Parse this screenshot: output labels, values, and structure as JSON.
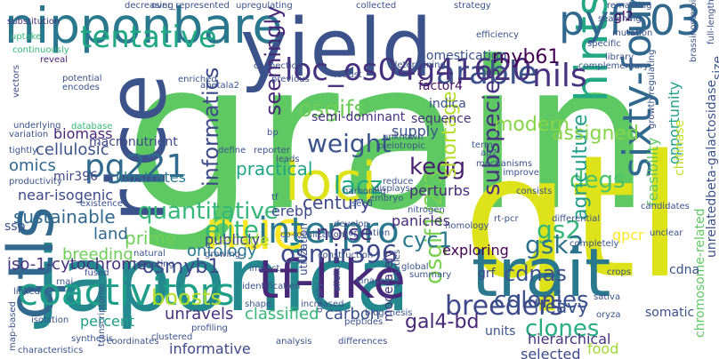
{
  "words": [
    {
      "text": "grain",
      "color": "#5ec962"
    },
    {
      "text": "qtl",
      "color": "#dde318"
    },
    {
      "text": "japonica",
      "color": "#23898e"
    },
    {
      "text": "rice",
      "color": "#3b528b"
    },
    {
      "text": "qtls",
      "color": "#31688e"
    },
    {
      "text": "yield",
      "color": "#3b528b"
    },
    {
      "text": "nipponbare",
      "color": "#2a788e"
    },
    {
      "text": "trait",
      "color": "#2a788e"
    },
    {
      "text": "loci",
      "color": "#dde318"
    },
    {
      "text": "tf-like",
      "color": "#482878"
    },
    {
      "text": "tentative",
      "color": "#22a884"
    },
    {
      "text": "nue",
      "color": "#fde725"
    },
    {
      "text": "interpro",
      "color": "#2a788e"
    },
    {
      "text": "hints",
      "color": "#22a884"
    },
    {
      "text": "sixty-four",
      "color": "#31688e"
    },
    {
      "text": "pyf503",
      "color": "#31688e"
    },
    {
      "text": "arable",
      "color": "#3b528b"
    },
    {
      "text": "loc_os04g41620",
      "color": "#46327e"
    },
    {
      "text": "nils",
      "color": "#46327e"
    },
    {
      "text": "coactivitors",
      "color": "#1f9e89"
    },
    {
      "text": "quantitative",
      "color": "#35b779"
    },
    {
      "text": "elite",
      "color": "#35b779"
    },
    {
      "text": "osmir396",
      "color": "#3e4989"
    },
    {
      "text": "weight",
      "color": "#3b528b"
    },
    {
      "text": "osgifs",
      "color": "#6ece58"
    },
    {
      "text": "osgif1/2/3",
      "color": "#7ad151"
    },
    {
      "text": "pg221",
      "color": "#31688e"
    },
    {
      "text": "informatics",
      "color": "#3e4989"
    },
    {
      "text": "seemingly",
      "color": "#482878"
    },
    {
      "text": "lacz",
      "color": "#22a884"
    },
    {
      "text": "kegg",
      "color": "#481f70"
    },
    {
      "text": "gs2",
      "color": "#35b779"
    },
    {
      "text": "gsk2",
      "color": "#2c728e"
    },
    {
      "text": "degs",
      "color": "#4ac16d"
    },
    {
      "text": "cdnas",
      "color": "#3b528b"
    },
    {
      "text": "breeders",
      "color": "#3e4989"
    },
    {
      "text": "agriculture",
      "color": "#1f9e89"
    },
    {
      "text": "subspecies",
      "color": "#46327e"
    },
    {
      "text": "clones",
      "color": "#26ad81"
    },
    {
      "text": "cyc1",
      "color": "#2a788e"
    },
    {
      "text": "colonies",
      "color": "#3b528b"
    },
    {
      "text": "gal4-bd",
      "color": "#482878"
    },
    {
      "text": "osmyb1",
      "color": "#3e4989"
    },
    {
      "text": "boosts",
      "color": "#b5de2b"
    },
    {
      "text": "unravels",
      "color": "#46327e"
    },
    {
      "text": "classified",
      "color": "#35b779"
    },
    {
      "text": "carbon",
      "color": "#3b528b"
    },
    {
      "text": "noise",
      "color": "#46327e"
    },
    {
      "text": "shortage",
      "color": "#b5de2b"
    },
    {
      "text": "myb61",
      "color": "#440154"
    },
    {
      "text": "modern",
      "color": "#86d549"
    },
    {
      "text": "assigned",
      "color": "#86d549"
    },
    {
      "text": "century",
      "color": "#3e4989"
    },
    {
      "text": "practical",
      "color": "#20a486"
    },
    {
      "text": "sustainable",
      "color": "#31688e"
    },
    {
      "text": "heavy",
      "color": "#3b528b"
    },
    {
      "text": "elite2",
      "color": "#35b779"
    },
    {
      "text": "prime",
      "color": "#6ece58"
    },
    {
      "text": "decade",
      "color": "#addc30"
    },
    {
      "text": "ontology",
      "color": "#2a788e"
    },
    {
      "text": "land",
      "color": "#31688e"
    },
    {
      "text": "breeding",
      "color": "#6ece58"
    },
    {
      "text": "publicly",
      "color": "#3e4989"
    },
    {
      "text": "erebp",
      "color": "#3e4989"
    },
    {
      "text": "iso-1-cytochrome",
      "color": "#46327e"
    },
    {
      "text": "near-isogenic",
      "color": "#3e4989"
    },
    {
      "text": "omics",
      "color": "#31688e"
    },
    {
      "text": "biomass",
      "color": "#482878"
    },
    {
      "text": "cellulosic",
      "color": "#3b528b"
    },
    {
      "text": "macronutrient",
      "color": "#3e4989"
    },
    {
      "text": "illustrates",
      "color": "#287c8e"
    },
    {
      "text": "mir396",
      "color": "#3e4989"
    },
    {
      "text": "semi-dominant",
      "color": "#46327e"
    },
    {
      "text": "sequence",
      "color": "#46327e"
    },
    {
      "text": "indica",
      "color": "#3b528b"
    },
    {
      "text": "supply",
      "color": "#3b528b"
    },
    {
      "text": "factor4",
      "color": "#471063"
    },
    {
      "text": "domestication",
      "color": "#3b528b"
    },
    {
      "text": "perturbs",
      "color": "#482878"
    },
    {
      "text": "panicles",
      "color": "#482878"
    },
    {
      "text": "exploring",
      "color": "#440154"
    },
    {
      "text": "qpcr",
      "color": "#fde725"
    },
    {
      "text": "grf",
      "color": "#3e4989"
    },
    {
      "text": "units",
      "color": "#3b528b"
    },
    {
      "text": "moderately",
      "color": "#46327e"
    },
    {
      "text": "hierarchical",
      "color": "#46327e"
    },
    {
      "text": "selected",
      "color": "#3e4989"
    },
    {
      "text": "food",
      "color": "#a0da39"
    },
    {
      "text": "informative",
      "color": "#3e4989"
    },
    {
      "text": "percent",
      "color": "#1f9e89"
    },
    {
      "text": "opportunity",
      "color": "#1f9e89"
    },
    {
      "text": "feasibility",
      "color": "#5ec962"
    },
    {
      "text": "somatic",
      "color": "#3b528b"
    },
    {
      "text": "chitinase",
      "color": "#c2df23"
    },
    {
      "text": "unrelatedbeta-galactosidase",
      "color": "#3b528b"
    },
    {
      "text": "chromosome-related",
      "color": "#5ec962"
    },
    {
      "text": "size",
      "color": "#3b528b"
    },
    {
      "text": "cdna",
      "color": "#3b528b"
    },
    {
      "text": "gl2",
      "color": "#440154"
    },
    {
      "text": "substitution",
      "color": "#46327e"
    },
    {
      "text": "uptake",
      "color": "#35b779"
    },
    {
      "text": "vectors",
      "color": "#3e4989"
    },
    {
      "text": "continuously",
      "color": "#35b779"
    },
    {
      "text": "reveal",
      "color": "#481f70"
    },
    {
      "text": "potential",
      "color": "#3b528b"
    },
    {
      "text": "encodes",
      "color": "#3b528b"
    },
    {
      "text": "database",
      "color": "#35b779"
    },
    {
      "text": "variation",
      "color": "#3b528b"
    },
    {
      "text": "underlying",
      "color": "#3b528b"
    },
    {
      "text": "tightly",
      "color": "#3b528b"
    },
    {
      "text": "productivity",
      "color": "#3b528b"
    },
    {
      "text": "existence",
      "color": "#3b528b"
    },
    {
      "text": "natural",
      "color": "#3b528b"
    },
    {
      "text": "growing",
      "color": "#3b528b"
    },
    {
      "text": "ssp",
      "color": "#3b528b"
    },
    {
      "text": "targeting",
      "color": "#3b528b"
    },
    {
      "text": "fused",
      "color": "#3b528b"
    },
    {
      "text": "linked",
      "color": "#3b528b"
    },
    {
      "text": "isolation",
      "color": "#3b528b"
    },
    {
      "text": "map-based",
      "color": "#3b528b"
    },
    {
      "text": "transcriptome",
      "color": "#3b528b"
    },
    {
      "text": "coordinates",
      "color": "#3b528b"
    },
    {
      "text": "synthesis",
      "color": "#3b528b"
    },
    {
      "text": "characteristics",
      "color": "#3b528b"
    },
    {
      "text": "clustered",
      "color": "#3b528b"
    },
    {
      "text": "profiling",
      "color": "#3b528b"
    },
    {
      "text": "analysis",
      "color": "#3b528b"
    },
    {
      "text": "differences",
      "color": "#3b528b"
    },
    {
      "text": "utilization",
      "color": "#3b528b"
    },
    {
      "text": "increased",
      "color": "#3b528b"
    },
    {
      "text": "biogenesis",
      "color": "#3b528b"
    },
    {
      "text": "peptides",
      "color": "#3b528b"
    },
    {
      "text": "quality",
      "color": "#3b528b"
    },
    {
      "text": "allelic",
      "color": "#3b528b"
    },
    {
      "text": "kinases",
      "color": "#3b528b"
    },
    {
      "text": "sativa",
      "color": "#3b528b"
    },
    {
      "text": "oryza",
      "color": "#3b528b"
    },
    {
      "text": "varieties",
      "color": "#3b528b"
    },
    {
      "text": "global",
      "color": "#3b528b"
    },
    {
      "text": "summary",
      "color": "#3b528b"
    },
    {
      "text": "identification",
      "color": "#3b528b"
    },
    {
      "text": "shape",
      "color": "#3b528b"
    },
    {
      "text": "impact",
      "color": "#3b528b"
    },
    {
      "text": "construction",
      "color": "#3b528b"
    },
    {
      "text": "co-localization",
      "color": "#3b528b"
    },
    {
      "text": "population",
      "color": "#3b528b"
    },
    {
      "text": "develop",
      "color": "#3b528b"
    },
    {
      "text": "seed",
      "color": "#3b528b"
    },
    {
      "text": "nitrogen",
      "color": "#3b528b"
    },
    {
      "text": "completely",
      "color": "#3b528b"
    },
    {
      "text": "rt-pcr",
      "color": "#3b528b"
    },
    {
      "text": "differential",
      "color": "#3b528b"
    },
    {
      "text": "unclear",
      "color": "#3b528b"
    },
    {
      "text": "candidates",
      "color": "#3b528b"
    },
    {
      "text": "homology",
      "color": "#3b528b"
    },
    {
      "text": "consists",
      "color": "#3b528b"
    },
    {
      "text": "improve",
      "color": "#3b528b"
    },
    {
      "text": "embryo",
      "color": "#3b528b"
    },
    {
      "text": "harboring",
      "color": "#3b528b"
    },
    {
      "text": "reduce",
      "color": "#3b528b"
    },
    {
      "text": "displays",
      "color": "#3b528b"
    },
    {
      "text": "mechanisms",
      "color": "#3b528b"
    },
    {
      "text": "term",
      "color": "#3b528b"
    },
    {
      "text": "ap2",
      "color": "#3b528b"
    },
    {
      "text": "pleiotropic",
      "color": "#3b528b"
    },
    {
      "text": "unknown",
      "color": "#3b528b"
    },
    {
      "text": "reporter",
      "color": "#3b528b"
    },
    {
      "text": "leads",
      "color": "#3b528b"
    },
    {
      "text": "bp",
      "color": "#3b528b"
    },
    {
      "text": "define",
      "color": "#3b528b"
    },
    {
      "text": "enriched",
      "color": "#3b528b"
    },
    {
      "text": "apetala2",
      "color": "#3b528b"
    },
    {
      "text": "connection",
      "color": "#3b528b"
    },
    {
      "text": "previous",
      "color": "#3b528b"
    },
    {
      "text": "robust",
      "color": "#3b528b"
    },
    {
      "text": "collected",
      "color": "#3b528b"
    },
    {
      "text": "determining",
      "color": "#3b528b"
    },
    {
      "text": "efficiency",
      "color": "#3b528b"
    },
    {
      "text": "strategy",
      "color": "#3b528b"
    },
    {
      "text": "decreasing",
      "color": "#3b528b"
    },
    {
      "text": "over_represented",
      "color": "#3b528b"
    },
    {
      "text": "upregulating",
      "color": "#3b528b"
    },
    {
      "text": "remaining",
      "color": "#3b528b"
    },
    {
      "text": "searching",
      "color": "#3b528b"
    },
    {
      "text": "mutation",
      "color": "#3b528b"
    },
    {
      "text": "specific",
      "color": "#3b528b"
    },
    {
      "text": "library",
      "color": "#3b528b"
    },
    {
      "text": "complementary",
      "color": "#3b528b"
    },
    {
      "text": "full-length",
      "color": "#3b528b"
    },
    {
      "text": "brassinosteroid",
      "color": "#3b528b"
    },
    {
      "text": "growth-regulating",
      "color": "#3b528b"
    },
    {
      "text": "tf",
      "color": "#3b528b"
    },
    {
      "text": "rnai",
      "color": "#3b528b"
    },
    {
      "text": "crops",
      "color": "#3b528b"
    },
    {
      "text": "nucleus",
      "color": "#3b528b"
    }
  ]
}
